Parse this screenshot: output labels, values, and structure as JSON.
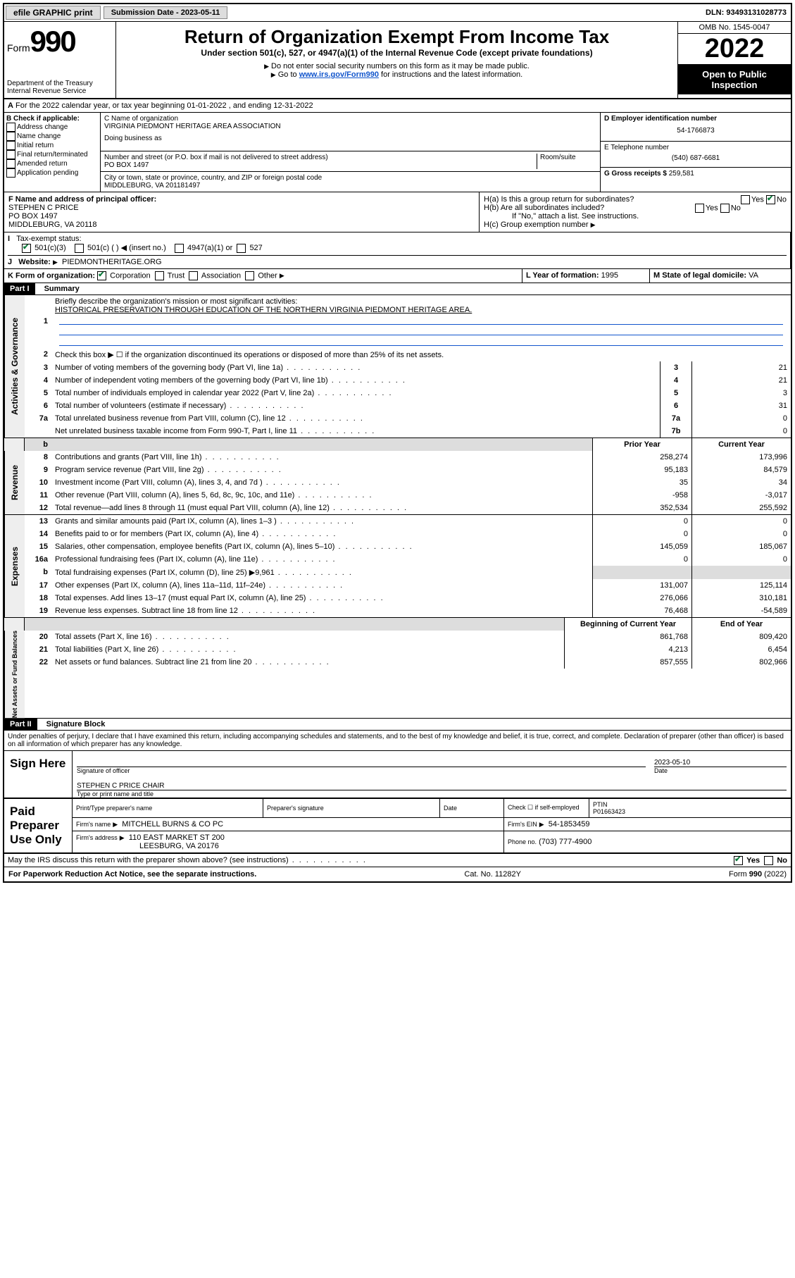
{
  "topbar": {
    "efile": "efile GRAPHIC print",
    "submission_label": "Submission Date - 2023-05-11",
    "dln": "DLN: 93493131028773"
  },
  "header": {
    "form_prefix": "Form",
    "form_number": "990",
    "dept": "Department of the Treasury",
    "irs": "Internal Revenue Service",
    "title": "Return of Organization Exempt From Income Tax",
    "subtitle": "Under section 501(c), 527, or 4947(a)(1) of the Internal Revenue Code (except private foundations)",
    "note1": "Do not enter social security numbers on this form as it may be made public.",
    "note2_pre": "Go to ",
    "note2_link": "www.irs.gov/Form990",
    "note2_post": " for instructions and the latest information.",
    "omb": "OMB No. 1545-0047",
    "year": "2022",
    "open": "Open to Public Inspection"
  },
  "line_a": "For the 2022 calendar year, or tax year beginning 01-01-2022   , and ending 12-31-2022",
  "col_b": {
    "label": "B Check if applicable:",
    "opts": [
      "Address change",
      "Name change",
      "Initial return",
      "Final return/terminated",
      "Amended return",
      "Application pending"
    ]
  },
  "col_c": {
    "name_label": "C Name of organization",
    "name": "VIRGINIA PIEDMONT HERITAGE AREA ASSOCIATION",
    "dba": "Doing business as",
    "street_label": "Number and street (or P.O. box if mail is not delivered to street address)",
    "room_label": "Room/suite",
    "street": "PO BOX 1497",
    "city_label": "City or town, state or province, country, and ZIP or foreign postal code",
    "city": "MIDDLEBURG, VA  201181497"
  },
  "col_d": {
    "d_label": "D Employer identification number",
    "d_val": "54-1766873",
    "e_label": "E Telephone number",
    "e_val": "(540) 687-6681",
    "g_label": "G Gross receipts $",
    "g_val": "259,581"
  },
  "block_f": {
    "f_label": "F Name and address of principal officer:",
    "f_name": "STEPHEN C PRICE",
    "f_addr1": "PO BOX 1497",
    "f_addr2": "MIDDLEBURG, VA  20118",
    "ha": "H(a)  Is this a group return for subordinates?",
    "hb": "H(b)  Are all subordinates included?",
    "hb_note": "If \"No,\" attach a list. See instructions.",
    "hc": "H(c)  Group exemption number",
    "yes": "Yes",
    "no": "No"
  },
  "line_i": {
    "label": "Tax-exempt status:",
    "opts": [
      "501(c)(3)",
      "501(c) (   )  ◀ (insert no.)",
      "4947(a)(1) or",
      "527"
    ]
  },
  "line_j": {
    "label": "Website:",
    "val": "PIEDMONTHERITAGE.ORG"
  },
  "line_k": {
    "label": "K Form of organization:",
    "opts": [
      "Corporation",
      "Trust",
      "Association",
      "Other"
    ],
    "l_label": "L Year of formation:",
    "l_val": "1995",
    "m_label": "M State of legal domicile:",
    "m_val": "VA"
  },
  "part1": {
    "hdr": "Part I",
    "title": "Summary",
    "l1": "Briefly describe the organization's mission or most significant activities:",
    "mission": "HISTORICAL PRESERVATION THROUGH EDUCATION OF THE NORTHERN VIRGINIA PIEDMONT HERITAGE AREA.",
    "l2": "Check this box ▶ ☐  if the organization discontinued its operations or disposed of more than 25% of its net assets.",
    "rows_gov": [
      {
        "n": "3",
        "d": "Number of voting members of the governing body (Part VI, line 1a)",
        "b": "3",
        "v": "21"
      },
      {
        "n": "4",
        "d": "Number of independent voting members of the governing body (Part VI, line 1b)",
        "b": "4",
        "v": "21"
      },
      {
        "n": "5",
        "d": "Total number of individuals employed in calendar year 2022 (Part V, line 2a)",
        "b": "5",
        "v": "3"
      },
      {
        "n": "6",
        "d": "Total number of volunteers (estimate if necessary)",
        "b": "6",
        "v": "31"
      },
      {
        "n": "7a",
        "d": "Total unrelated business revenue from Part VIII, column (C), line 12",
        "b": "7a",
        "v": "0"
      },
      {
        "n": "",
        "d": "Net unrelated business taxable income from Form 990-T, Part I, line 11",
        "b": "7b",
        "v": "0"
      }
    ],
    "col_hdr_prior": "Prior Year",
    "col_hdr_curr": "Current Year",
    "rows_rev": [
      {
        "n": "8",
        "d": "Contributions and grants (Part VIII, line 1h)",
        "p": "258,274",
        "c": "173,996"
      },
      {
        "n": "9",
        "d": "Program service revenue (Part VIII, line 2g)",
        "p": "95,183",
        "c": "84,579"
      },
      {
        "n": "10",
        "d": "Investment income (Part VIII, column (A), lines 3, 4, and 7d )",
        "p": "35",
        "c": "34"
      },
      {
        "n": "11",
        "d": "Other revenue (Part VIII, column (A), lines 5, 6d, 8c, 9c, 10c, and 11e)",
        "p": "-958",
        "c": "-3,017"
      },
      {
        "n": "12",
        "d": "Total revenue—add lines 8 through 11 (must equal Part VIII, column (A), line 12)",
        "p": "352,534",
        "c": "255,592"
      }
    ],
    "rows_exp": [
      {
        "n": "13",
        "d": "Grants and similar amounts paid (Part IX, column (A), lines 1–3 )",
        "p": "0",
        "c": "0"
      },
      {
        "n": "14",
        "d": "Benefits paid to or for members (Part IX, column (A), line 4)",
        "p": "0",
        "c": "0"
      },
      {
        "n": "15",
        "d": "Salaries, other compensation, employee benefits (Part IX, column (A), lines 5–10)",
        "p": "145,059",
        "c": "185,067"
      },
      {
        "n": "16a",
        "d": "Professional fundraising fees (Part IX, column (A), line 11e)",
        "p": "0",
        "c": "0"
      },
      {
        "n": "b",
        "d": "Total fundraising expenses (Part IX, column (D), line 25) ▶9,961",
        "p": "",
        "c": "",
        "grey": true
      },
      {
        "n": "17",
        "d": "Other expenses (Part IX, column (A), lines 11a–11d, 11f–24e)",
        "p": "131,007",
        "c": "125,114"
      },
      {
        "n": "18",
        "d": "Total expenses. Add lines 13–17 (must equal Part IX, column (A), line 25)",
        "p": "276,066",
        "c": "310,181"
      },
      {
        "n": "19",
        "d": "Revenue less expenses. Subtract line 18 from line 12",
        "p": "76,468",
        "c": "-54,589"
      }
    ],
    "col_hdr_beg": "Beginning of Current Year",
    "col_hdr_end": "End of Year",
    "rows_net": [
      {
        "n": "20",
        "d": "Total assets (Part X, line 16)",
        "p": "861,768",
        "c": "809,420"
      },
      {
        "n": "21",
        "d": "Total liabilities (Part X, line 26)",
        "p": "4,213",
        "c": "6,454"
      },
      {
        "n": "22",
        "d": "Net assets or fund balances. Subtract line 21 from line 20",
        "p": "857,555",
        "c": "802,966"
      }
    ],
    "vlabels": {
      "gov": "Activities & Governance",
      "rev": "Revenue",
      "exp": "Expenses",
      "net": "Net Assets or Fund Balances"
    }
  },
  "part2": {
    "hdr": "Part II",
    "title": "Signature Block",
    "decl": "Under penalties of perjury, I declare that I have examined this return, including accompanying schedules and statements, and to the best of my knowledge and belief, it is true, correct, and complete. Declaration of preparer (other than officer) is based on all information of which preparer has any knowledge.",
    "sign_here": "Sign Here",
    "sig_officer": "Signature of officer",
    "sig_date_val": "2023-05-10",
    "sig_date": "Date",
    "officer_name": "STEPHEN C PRICE  CHAIR",
    "officer_label": "Type or print name and title",
    "paid": "Paid Preparer Use Only",
    "prep_name": "Print/Type preparer's name",
    "prep_sig": "Preparer's signature",
    "date": "Date",
    "check_self": "Check ☐ if self-employed",
    "ptin_label": "PTIN",
    "ptin": "P01663423",
    "firm_name_label": "Firm's name",
    "firm_name": "MITCHELL BURNS & CO PC",
    "firm_ein_label": "Firm's EIN",
    "firm_ein": "54-1853459",
    "firm_addr_label": "Firm's address",
    "firm_addr1": "110 EAST MARKET ST 200",
    "firm_addr2": "LEESBURG, VA  20176",
    "phone_label": "Phone no.",
    "phone": "(703) 777-4900",
    "discuss": "May the IRS discuss this return with the preparer shown above? (see instructions)"
  },
  "footer": {
    "left": "For Paperwork Reduction Act Notice, see the separate instructions.",
    "mid": "Cat. No. 11282Y",
    "right": "Form 990 (2022)"
  }
}
